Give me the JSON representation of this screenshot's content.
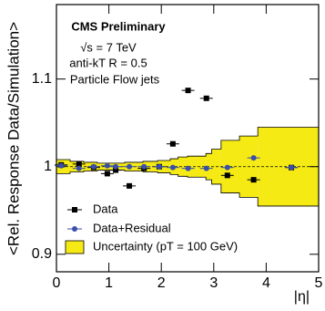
{
  "chart_data": {
    "type": "scatter",
    "title": "CMS Preliminary",
    "annotations": [
      "√s = 7 TeV",
      "anti-kT R = 0.5",
      "Particle Flow jets"
    ],
    "x_label": "|η|",
    "y_label": "<Rel. Response Data/Simulation>",
    "xlim": [
      0,
      5
    ],
    "ylim": [
      0.88,
      1.185
    ],
    "xticks": [
      0,
      1,
      2,
      3,
      4,
      5
    ],
    "yticks": [
      0.9,
      1,
      1.1
    ],
    "reference_line": 1,
    "x": [
      0.09,
      0.43,
      0.71,
      0.97,
      1.13,
      1.39,
      1.67,
      1.96,
      2.22,
      2.51,
      2.86,
      3.26,
      3.76,
      4.48
    ],
    "series": [
      {
        "name": "Data",
        "color": "#000000",
        "marker": "square",
        "values": [
          1.002,
          1.003,
          0.999,
          0.992,
          0.996,
          0.978,
          0.998,
          1.0,
          1.026,
          1.087,
          1.078,
          0.99,
          0.985,
          0.999
        ]
      },
      {
        "name": "Data+Residual",
        "color": "#3a4fa8",
        "marker": "circle",
        "values": [
          1.001,
          0.998,
          1.0,
          1.001,
          1.0,
          1.0,
          1.0,
          1.0,
          0.999,
          0.998,
          0.998,
          0.999,
          1.01,
          0.999
        ]
      }
    ],
    "band": {
      "name": "Uncertainty (pT = 100 GeV)",
      "color": "#f5ea14",
      "bins": [
        0,
        0.26,
        0.52,
        0.78,
        1.04,
        1.3,
        1.48,
        1.65,
        1.93,
        2.17,
        2.32,
        2.5,
        2.85,
        2.96,
        3.14,
        3.49,
        3.84,
        5
      ],
      "low": [
        0.992,
        0.994,
        0.995,
        0.996,
        0.996,
        0.995,
        0.995,
        0.994,
        0.993,
        0.991,
        0.989,
        0.988,
        0.985,
        0.98,
        0.97,
        0.965,
        0.955
      ],
      "high": [
        1.008,
        1.006,
        1.005,
        1.004,
        1.004,
        1.005,
        1.005,
        1.006,
        1.007,
        1.009,
        1.011,
        1.012,
        1.015,
        1.02,
        1.03,
        1.035,
        1.045
      ]
    }
  }
}
